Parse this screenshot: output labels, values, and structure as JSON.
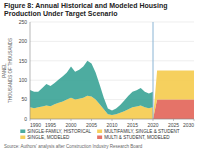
{
  "chart_data": {
    "type": "area",
    "stacked": true,
    "title": "Figure 8: Annual Historical and Modeled Housing Production Under Target Scenario",
    "y_label": "PANEL\nTHOUSANDS OF THOUSANDS",
    "source": "Source: Authors' analysis after Construction Industry Research Board",
    "x": [
      1990,
      1991,
      1992,
      1993,
      1994,
      1995,
      1996,
      1997,
      1998,
      1999,
      2000,
      2001,
      2002,
      2003,
      2004,
      2005,
      2006,
      2007,
      2008,
      2009,
      2010,
      2011,
      2012,
      2013,
      2014,
      2015,
      2016,
      2017,
      2018,
      2019,
      2020,
      2021,
      2022,
      2023,
      2024,
      2025,
      2026,
      2027,
      2028,
      2029,
      2030
    ],
    "series": [
      {
        "name": "SINGLE-FAMILY, HISTORICAL",
        "color": "#2e9d8f",
        "values": [
          45,
          42,
          40,
          48,
          55,
          52,
          55,
          60,
          65,
          70,
          80,
          72,
          75,
          80,
          90,
          85,
          70,
          50,
          30,
          15,
          12,
          15,
          20,
          28,
          35,
          40,
          42,
          45,
          40,
          38,
          40,
          null,
          null,
          null,
          null,
          null,
          null,
          null,
          null,
          null,
          null
        ]
      },
      {
        "name": "MULTIFAMILY, SINGLE & STUDENT",
        "color": "#f5c842",
        "values": [
          30,
          28,
          30,
          32,
          35,
          33,
          38,
          42,
          45,
          50,
          55,
          50,
          52,
          55,
          60,
          58,
          50,
          38,
          25,
          12,
          10,
          12,
          16,
          20,
          25,
          30,
          32,
          35,
          30,
          28,
          30,
          null,
          null,
          null,
          null,
          null,
          null,
          null,
          null,
          null,
          null
        ]
      },
      {
        "name": "SINGLE, MODELED",
        "color": "#f5c842",
        "values": [
          null,
          null,
          null,
          null,
          null,
          null,
          null,
          null,
          null,
          null,
          null,
          null,
          null,
          null,
          null,
          null,
          null,
          null,
          null,
          null,
          null,
          null,
          null,
          null,
          null,
          null,
          null,
          null,
          null,
          null,
          0,
          75,
          75,
          75,
          75,
          75,
          75,
          75,
          75,
          75,
          75
        ]
      },
      {
        "name": "MULTI & STUDENT, MODELED",
        "color": "#e05a4e",
        "values": [
          null,
          null,
          null,
          null,
          null,
          null,
          null,
          null,
          null,
          null,
          null,
          null,
          null,
          null,
          null,
          null,
          null,
          null,
          null,
          null,
          null,
          null,
          null,
          null,
          null,
          null,
          null,
          null,
          null,
          null,
          0,
          50,
          50,
          50,
          50,
          50,
          50,
          50,
          50,
          50,
          50
        ]
      }
    ],
    "divider": {
      "x": 2020,
      "color": "#8ab4d4"
    },
    "xlim": [
      1990,
      2030
    ],
    "xticks": [
      1990,
      1995,
      2000,
      2005,
      2010,
      2015,
      2020,
      2025,
      2030
    ],
    "ylim": [
      0,
      250
    ],
    "yticks": [
      0,
      50,
      100,
      150,
      200,
      250
    ],
    "grid": true,
    "legend": "bottom"
  }
}
